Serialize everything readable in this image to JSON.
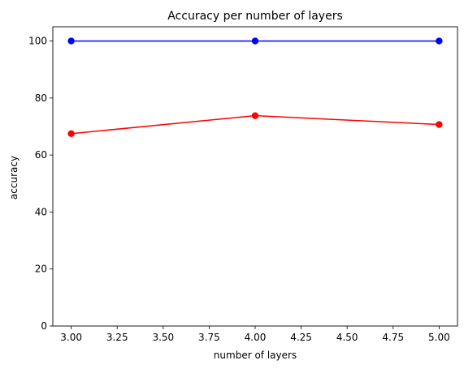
{
  "chart_data": {
    "type": "line",
    "title": "Accuracy per number of layers",
    "xlabel": "number of layers",
    "ylabel": "accuracy",
    "xlim": [
      2.9,
      5.1
    ],
    "ylim": [
      0,
      105
    ],
    "xticks": [
      3.0,
      3.25,
      3.5,
      3.75,
      4.0,
      4.25,
      4.5,
      4.75,
      5.0
    ],
    "xtick_labels": [
      "3.00",
      "3.25",
      "3.50",
      "3.75",
      "4.00",
      "4.25",
      "4.50",
      "4.75",
      "5.00"
    ],
    "yticks": [
      0,
      20,
      40,
      60,
      80,
      100
    ],
    "ytick_labels": [
      "0",
      "20",
      "40",
      "60",
      "80",
      "100"
    ],
    "grid": false,
    "x": [
      3,
      4,
      5
    ],
    "series": [
      {
        "color": "#0000ff",
        "values": [
          100,
          100,
          100
        ]
      },
      {
        "color": "#ff0000",
        "values": [
          67.5,
          73.8,
          70.7
        ]
      }
    ]
  }
}
